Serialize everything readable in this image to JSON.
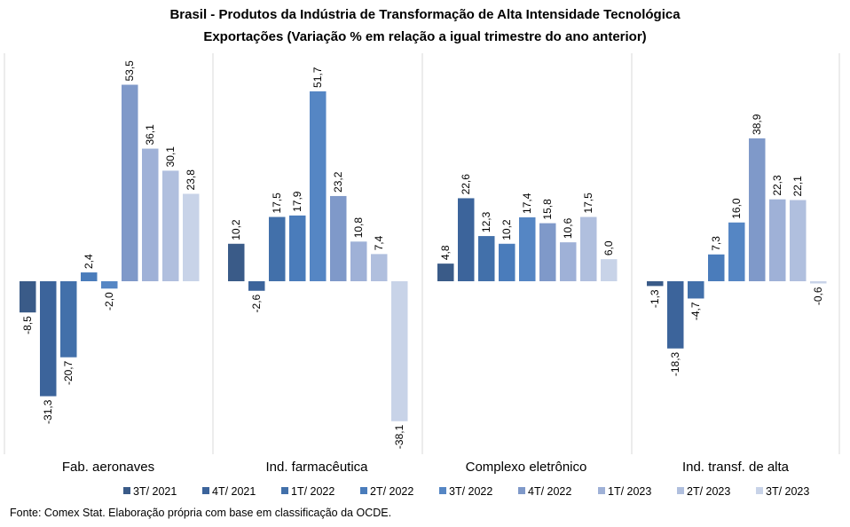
{
  "chart_data": {
    "type": "bar",
    "title": "Brasil - Produtos da Indústria de Transformação de Alta Intensidade Tecnológica",
    "subtitle": "Exportações (Variação % em relação a igual trimestre do ano anterior)",
    "categories": [
      "Fab. aeronaves",
      "Ind. farmacêutica",
      "Complexo eletrônico",
      "Ind. transf. de alta"
    ],
    "legend_position": "bottom",
    "grid": false,
    "ylim": [
      -44,
      60
    ],
    "series": [
      {
        "name": "3T/ 2021",
        "color": "#3a5b88",
        "values": [
          -8.5,
          10.2,
          4.8,
          -1.3
        ],
        "labels": [
          "-8,5",
          "10,2",
          "4,8",
          "-1,3"
        ]
      },
      {
        "name": "4T/ 2021",
        "color": "#3c649b",
        "values": [
          -31.3,
          -2.6,
          22.6,
          -18.3
        ],
        "labels": [
          "-31,3",
          "-2,6",
          "22,6",
          "-18,3"
        ]
      },
      {
        "name": "1T/ 2022",
        "color": "#4270aa",
        "values": [
          -20.7,
          17.5,
          12.3,
          -4.7
        ],
        "labels": [
          "-20,7",
          "17,5",
          "12,3",
          "-4,7"
        ]
      },
      {
        "name": "2T/ 2022",
        "color": "#4a7cbb",
        "values": [
          2.4,
          17.9,
          10.2,
          7.3
        ],
        "labels": [
          "2,4",
          "17,9",
          "10,2",
          "7,3"
        ]
      },
      {
        "name": "3T/ 2022",
        "color": "#5586c4",
        "values": [
          -2.0,
          51.7,
          17.4,
          16.0
        ],
        "labels": [
          "-2,0",
          "51,7",
          "17,4",
          "16,0"
        ]
      },
      {
        "name": "4T/ 2022",
        "color": "#7f99c9",
        "values": [
          53.5,
          23.2,
          15.8,
          38.9
        ],
        "labels": [
          "53,5",
          "23,2",
          "15,8",
          "38,9"
        ]
      },
      {
        "name": "1T/ 2023",
        "color": "#9fb1d7",
        "values": [
          36.1,
          10.8,
          10.6,
          22.3
        ],
        "labels": [
          "36,1",
          "10,8",
          "10,6",
          "22,3"
        ]
      },
      {
        "name": "2T/ 2023",
        "color": "#b0bfde",
        "values": [
          30.1,
          7.4,
          17.5,
          22.1
        ],
        "labels": [
          "30,1",
          "7,4",
          "17,5",
          "22,1"
        ]
      },
      {
        "name": "3T/ 2023",
        "color": "#c8d3e8",
        "values": [
          23.8,
          -38.1,
          6.0,
          -0.6
        ],
        "labels": [
          "23,8",
          "-38,1",
          "6,0",
          "-0,6"
        ]
      }
    ]
  },
  "source": "Fonte: Comex Stat. Elaboração própria com base em classificação da OCDE."
}
